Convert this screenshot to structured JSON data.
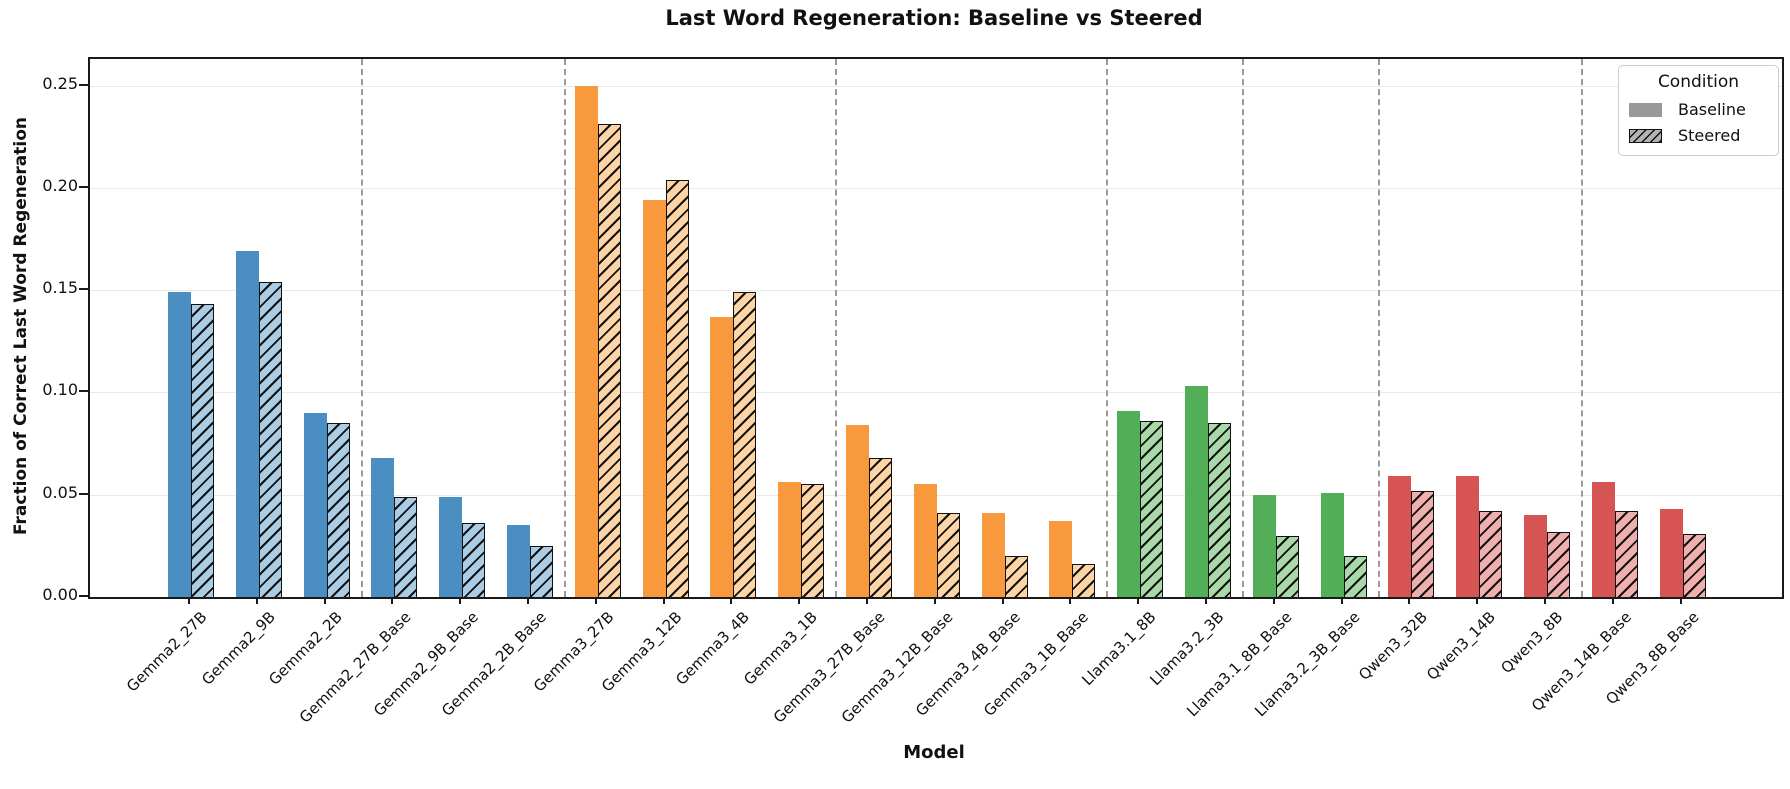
{
  "chart_data": {
    "type": "bar",
    "title": "Last Word Regeneration: Baseline vs Steered",
    "xlabel": "Model",
    "ylabel": "Fraction of Correct Last Word Regeneration",
    "ylim": [
      0,
      0.2625
    ],
    "ytick_values": [
      0.0,
      0.05,
      0.1,
      0.15,
      0.2,
      0.25
    ],
    "grid": "horizontal-only",
    "legend_position": "upper-right",
    "legend": {
      "title": "Condition",
      "baseline_label": "Baseline",
      "steered_label": "Steered"
    },
    "series": [
      {
        "name": "Baseline",
        "style": "solid"
      },
      {
        "name": "Steered",
        "style": "hatched"
      }
    ],
    "families": [
      {
        "name": "Gemma2",
        "color_solid": "#4a8ec2",
        "color_light": "#aacde5",
        "models": [
          {
            "label": "Gemma2_27B",
            "baseline": 0.149,
            "steered": 0.143
          },
          {
            "label": "Gemma2_9B",
            "baseline": 0.169,
            "steered": 0.154
          },
          {
            "label": "Gemma2_2B",
            "baseline": 0.09,
            "steered": 0.085
          }
        ]
      },
      {
        "name": "Gemma2 Base",
        "color_solid": "#4a8ec2",
        "color_light": "#aacde5",
        "models": [
          {
            "label": "Gemma2_27B_Base",
            "baseline": 0.068,
            "steered": 0.049
          },
          {
            "label": "Gemma2_9B_Base",
            "baseline": 0.049,
            "steered": 0.036
          },
          {
            "label": "Gemma2_2B_Base",
            "baseline": 0.035,
            "steered": 0.025
          }
        ]
      },
      {
        "name": "Gemma3",
        "color_solid": "#f9993e",
        "color_light": "#fcd4a5",
        "models": [
          {
            "label": "Gemma3_27B",
            "baseline": 0.25,
            "steered": 0.231
          },
          {
            "label": "Gemma3_12B",
            "baseline": 0.194,
            "steered": 0.204
          },
          {
            "label": "Gemma3_4B",
            "baseline": 0.137,
            "steered": 0.149
          },
          {
            "label": "Gemma3_1B",
            "baseline": 0.056,
            "steered": 0.055
          }
        ]
      },
      {
        "name": "Gemma3 Base",
        "color_solid": "#f9993e",
        "color_light": "#fcd4a5",
        "models": [
          {
            "label": "Gemma3_27B_Base",
            "baseline": 0.084,
            "steered": 0.068
          },
          {
            "label": "Gemma3_12B_Base",
            "baseline": 0.055,
            "steered": 0.041
          },
          {
            "label": "Gemma3_4B_Base",
            "baseline": 0.041,
            "steered": 0.02
          },
          {
            "label": "Gemma3_1B_Base",
            "baseline": 0.037,
            "steered": 0.016
          }
        ]
      },
      {
        "name": "Llama3",
        "color_solid": "#52ae57",
        "color_light": "#a9d8a9",
        "models": [
          {
            "label": "Llama3.1_8B",
            "baseline": 0.091,
            "steered": 0.086
          },
          {
            "label": "Llama3.2_3B",
            "baseline": 0.103,
            "steered": 0.085
          }
        ]
      },
      {
        "name": "Llama3 Base",
        "color_solid": "#52ae57",
        "color_light": "#a9d8a9",
        "models": [
          {
            "label": "Llama3.1_8B_Base",
            "baseline": 0.05,
            "steered": 0.03
          },
          {
            "label": "Llama3.2_3B_Base",
            "baseline": 0.051,
            "steered": 0.02
          }
        ]
      },
      {
        "name": "Qwen3",
        "color_solid": "#d65454",
        "color_light": "#f0afaf",
        "models": [
          {
            "label": "Qwen3_32B",
            "baseline": 0.059,
            "steered": 0.052
          },
          {
            "label": "Qwen3_14B",
            "baseline": 0.059,
            "steered": 0.042
          },
          {
            "label": "Qwen3_8B",
            "baseline": 0.04,
            "steered": 0.032
          }
        ]
      },
      {
        "name": "Qwen3 Base",
        "color_solid": "#d65454",
        "color_light": "#f0afaf",
        "models": [
          {
            "label": "Qwen3_14B_Base",
            "baseline": 0.056,
            "steered": 0.042
          },
          {
            "label": "Qwen3_8B_Base",
            "baseline": 0.043,
            "steered": 0.031
          }
        ]
      }
    ]
  }
}
